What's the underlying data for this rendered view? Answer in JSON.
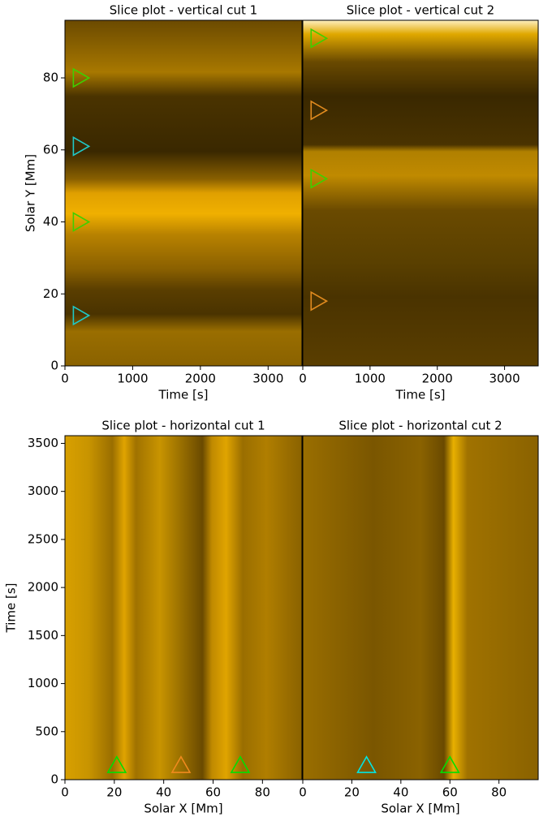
{
  "chart_data": [
    {
      "type": "scatter",
      "title": "Slice plot - vertical cut 1",
      "xlabel": "Time [s]",
      "ylabel": "Solar Y [Mm]",
      "xlim": [
        0,
        3500
      ],
      "ylim": [
        0,
        96
      ],
      "xticks": [
        0,
        1000,
        2000,
        3000
      ],
      "yticks": [
        0,
        20,
        40,
        60,
        80
      ],
      "marker": "triangle-right",
      "series": [
        {
          "color": "#3fcf00",
          "x": [
            230,
            230
          ],
          "y": [
            80,
            40
          ]
        },
        {
          "color": "#1fc8c8",
          "x": [
            230,
            230
          ],
          "y": [
            61,
            14
          ]
        }
      ]
    },
    {
      "type": "scatter",
      "title": "Slice plot - vertical cut 2",
      "xlabel": "Time [s]",
      "xlim": [
        0,
        3500
      ],
      "ylim": [
        0,
        96
      ],
      "xticks": [
        0,
        1000,
        2000,
        3000
      ],
      "marker": "triangle-right",
      "series": [
        {
          "color": "#3fcf00",
          "x": [
            230,
            230
          ],
          "y": [
            91,
            52
          ]
        },
        {
          "color": "#e08a1e",
          "x": [
            230,
            230
          ],
          "y": [
            71,
            18
          ]
        }
      ]
    },
    {
      "type": "scatter",
      "title": "Slice plot - horizontal cut 1",
      "xlabel": "Solar X [Mm]",
      "ylabel": "Time [s]",
      "xlim": [
        0,
        96
      ],
      "ylim": [
        0,
        3580
      ],
      "xticks": [
        0,
        20,
        40,
        60,
        80
      ],
      "yticks": [
        0,
        500,
        1000,
        1500,
        2000,
        2500,
        3000,
        3500
      ],
      "marker": "triangle-up",
      "series": [
        {
          "color": "#00e000",
          "x": [
            21,
            71
          ],
          "y": [
            150,
            150
          ]
        },
        {
          "color": "#f08a1e",
          "x": [
            47
          ],
          "y": [
            150
          ]
        }
      ]
    },
    {
      "type": "scatter",
      "title": "Slice plot - horizontal cut 2",
      "xlabel": "Solar X [Mm]",
      "xlim": [
        0,
        96
      ],
      "ylim": [
        0,
        3580
      ],
      "xticks": [
        0,
        20,
        40,
        60,
        80
      ],
      "marker": "triangle-up",
      "series": [
        {
          "color": "#00e6e6",
          "x": [
            26
          ],
          "y": [
            150
          ]
        },
        {
          "color": "#00e000",
          "x": [
            60
          ],
          "y": [
            150
          ]
        }
      ]
    }
  ]
}
